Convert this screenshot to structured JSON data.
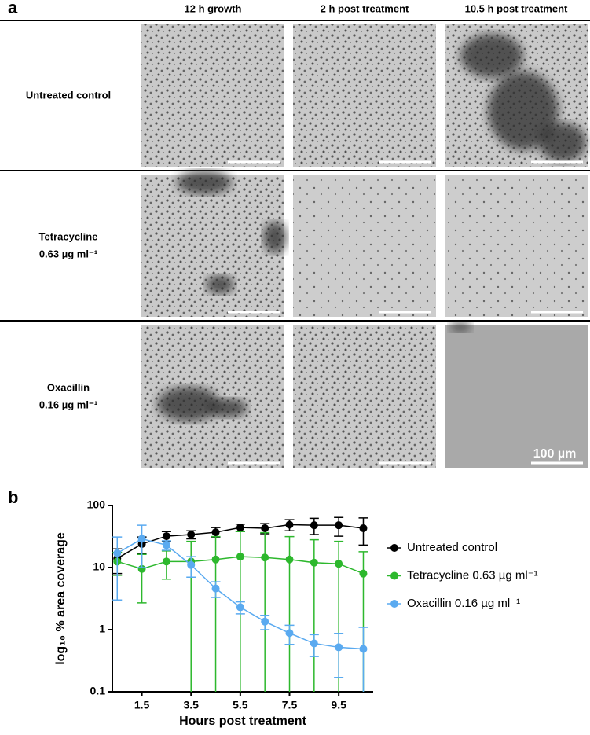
{
  "panel_a": {
    "label": "a",
    "columns": [
      "12 h growth",
      "2 h post treatment",
      "10.5 h post treatment"
    ],
    "rows": [
      [
        "Untreated control"
      ],
      [
        "Tetracycline",
        "0.63 µg ml⁻¹"
      ],
      [
        "Oxacillin",
        "0.16 µg ml⁻¹"
      ]
    ],
    "scale_bar": "100 µm"
  },
  "panel_b_label": "b",
  "chart_data": {
    "type": "line",
    "x_label": "Hours post treatment",
    "y_label": "log₁₀ % area coverage",
    "log_y": true,
    "legend": "right",
    "x": [
      0.5,
      1.5,
      2.5,
      3.5,
      4.5,
      5.5,
      6.5,
      7.5,
      8.5,
      9.5,
      10.5
    ],
    "xlim": [
      0.3,
      10.9
    ],
    "xticks": [
      1.5,
      3.5,
      5.5,
      7.5,
      9.5
    ],
    "ylim": [
      0.1,
      100
    ],
    "yticks": [
      0.1,
      1,
      10,
      100
    ],
    "series": [
      {
        "name": "Untreated control",
        "color": "#000000",
        "values": [
          14,
          24,
          32,
          34,
          37,
          44,
          43,
          49,
          48,
          48,
          43
        ],
        "errors": [
          6,
          7,
          6,
          5,
          7,
          6,
          8,
          10,
          14,
          16,
          20
        ]
      },
      {
        "name": "Tetracycline 0.63 µg ml⁻¹",
        "color": "#2db82d",
        "values": [
          12.5,
          9.5,
          12.5,
          12.5,
          13.5,
          15,
          14.5,
          13.5,
          12,
          11.5,
          8
        ],
        "errors": [
          5,
          6.8,
          6,
          14,
          18,
          23,
          22,
          18,
          16,
          15,
          10
        ]
      },
      {
        "name": "Oxacillin 0.16 µg ml⁻¹",
        "color": "#5aaaf0",
        "values": [
          17,
          29,
          23,
          11,
          4.6,
          2.3,
          1.35,
          0.88,
          0.6,
          0.52,
          0.49
        ],
        "errors": [
          14,
          19,
          4,
          4,
          1.3,
          0.5,
          0.35,
          0.3,
          0.23,
          0.35,
          0.6
        ]
      }
    ]
  }
}
